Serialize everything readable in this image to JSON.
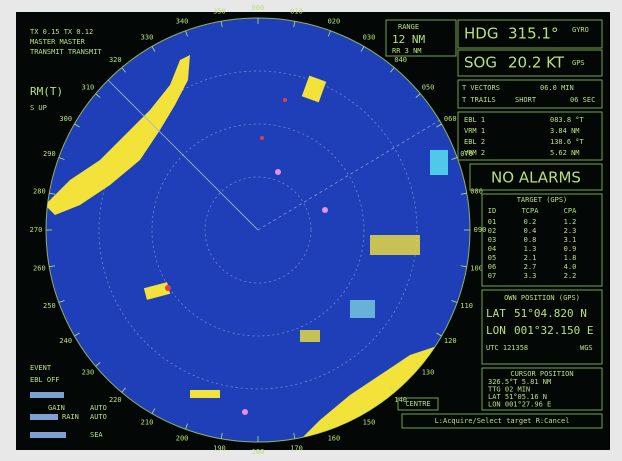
{
  "header": {
    "tx": "TX 0.15 TX 0.12",
    "mode": "MASTER  MASTER",
    "status": "TRANSMIT  TRANSMIT",
    "motion": "RM(T)",
    "orientation": "S UP"
  },
  "range": {
    "label": "RANGE",
    "value": "12 NM",
    "rings": "RR  3 NM"
  },
  "heading": {
    "label": "HDG",
    "value": "315.1°",
    "source": "GYRO"
  },
  "speed": {
    "label": "SOG",
    "value": "20.2 KT",
    "source": "GPS"
  },
  "vectors": {
    "label": "T VECTORS",
    "value": "06.0 MIN"
  },
  "trails": {
    "label": "T TRAILS",
    "value": "SHORT",
    "time": "06 SEC"
  },
  "markers": [
    {
      "label": "EBL 1",
      "value": "083.8 °T"
    },
    {
      "label": "VRM 1",
      "value": "3.84 NM"
    },
    {
      "label": "EBL 2",
      "value": "138.6 °T"
    },
    {
      "label": "VRM 2",
      "value": "5.62 NM"
    }
  ],
  "alarm": "NO ALARMS",
  "target": {
    "title": "TARGET (GPS)",
    "columns": [
      "ID",
      "TCPA",
      "CPA"
    ],
    "rows": [
      [
        "01",
        "0.2",
        "1.2"
      ],
      [
        "02",
        "0.4",
        "2.3"
      ],
      [
        "03",
        "0.8",
        "3.1"
      ],
      [
        "04",
        "1.3",
        "0.9"
      ],
      [
        "05",
        "2.1",
        "1.8"
      ],
      [
        "06",
        "2.7",
        "4.0"
      ],
      [
        "07",
        "3.3",
        "2.2"
      ]
    ]
  },
  "own_position": {
    "title": "OWN POSITION (GPS)",
    "lat_label": "LAT",
    "lat": "51°04.820 N",
    "lon_label": "LON",
    "lon": "001°32.150 E",
    "utc": "UTC  121358",
    "datum": "WGS"
  },
  "cursor": {
    "title": "CURSOR POSITION",
    "rows": [
      "326.5°T  5.81 NM",
      "TTG  02  MIN",
      "LAT  51°05.16  N",
      "LON  001°27.96  E"
    ]
  },
  "controls": {
    "event": "EVENT",
    "ebl": "EBL OFF",
    "gain": "GAIN",
    "gain_mode": "AUTO",
    "rain": "RAIN",
    "rain_mode": "AUTO",
    "sea": "SEA",
    "centre": "CENTRE",
    "help": "L:Acquire/Select target   R:Cancel"
  },
  "bearing_labels": [
    "000",
    "010",
    "020",
    "030",
    "040",
    "050",
    "060",
    "070",
    "080",
    "090",
    "100",
    "110",
    "120",
    "130",
    "140",
    "150",
    "160",
    "170",
    "180",
    "190",
    "200",
    "210",
    "220",
    "230",
    "240",
    "250",
    "260",
    "270",
    "280",
    "290",
    "300",
    "310",
    "320",
    "330",
    "340",
    "350"
  ]
}
